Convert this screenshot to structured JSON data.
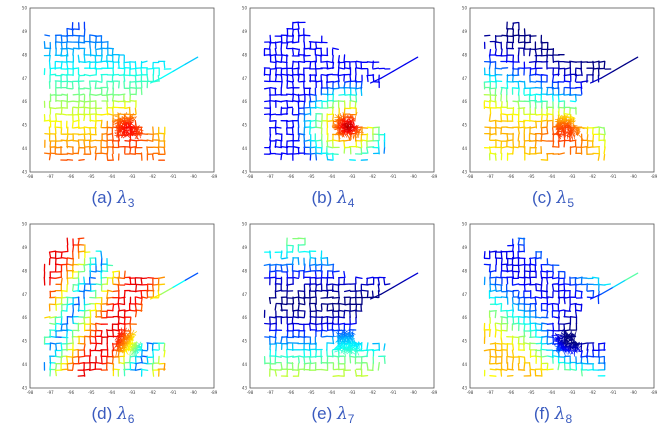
{
  "panels": [
    {
      "caption_label": "(a)",
      "symbol": "λ",
      "subscript": "3",
      "scheme": 3
    },
    {
      "caption_label": "(b)",
      "symbol": "λ",
      "subscript": "4",
      "scheme": 4
    },
    {
      "caption_label": "(c)",
      "symbol": "λ",
      "subscript": "5",
      "scheme": 5
    },
    {
      "caption_label": "(d)",
      "symbol": "λ",
      "subscript": "6",
      "scheme": 6
    },
    {
      "caption_label": "(e)",
      "symbol": "λ",
      "subscript": "7",
      "scheme": 7
    },
    {
      "caption_label": "(f)",
      "symbol": "λ",
      "subscript": "8",
      "scheme": 8
    }
  ],
  "x_ticks": [
    "-98",
    "-97",
    "-96",
    "-95",
    "-94",
    "-93",
    "-92",
    "-91",
    "-90",
    "-89"
  ],
  "y_ticks": [
    "50",
    "49",
    "48",
    "47",
    "46",
    "45",
    "44",
    "43"
  ]
}
